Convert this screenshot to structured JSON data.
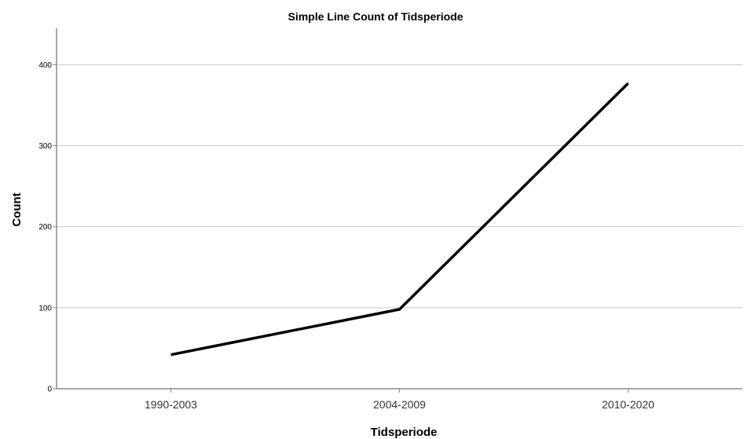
{
  "chart_data": {
    "type": "line",
    "title": "Simple Line Count of Tidsperiode",
    "xlabel": "Tidsperiode",
    "ylabel": "Count",
    "categories": [
      "1990-2003",
      "2004-2009",
      "2010-2020"
    ],
    "series": [
      {
        "values": [
          42,
          98,
          377
        ]
      }
    ],
    "ylim": [
      0,
      445
    ],
    "yticks": [
      0,
      100,
      200,
      300,
      400
    ],
    "grid": true,
    "line_color": "#000000"
  }
}
